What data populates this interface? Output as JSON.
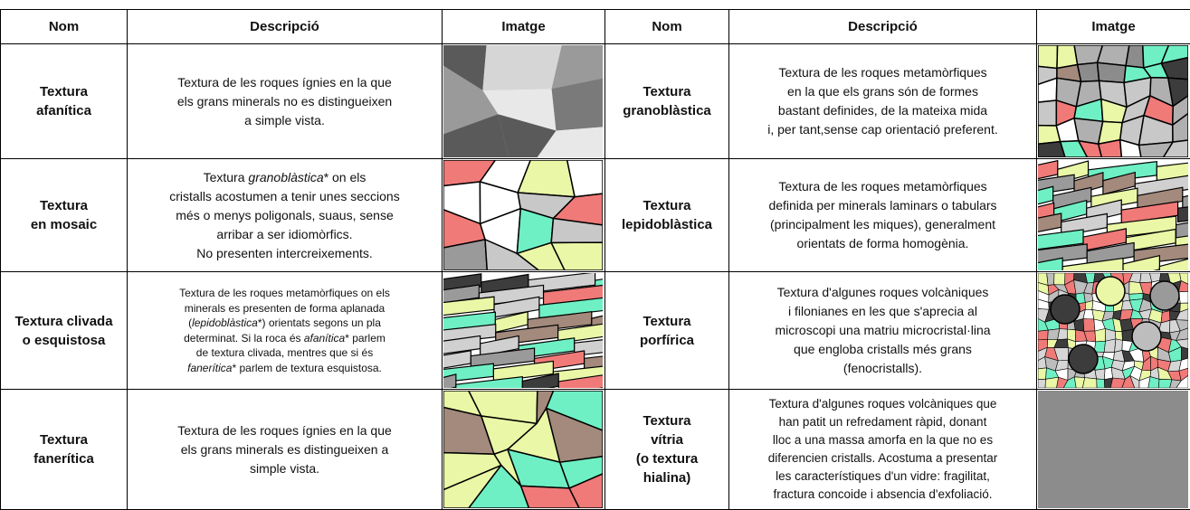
{
  "header": [
    "Nom",
    "Descripció",
    "Imatge",
    "Nom",
    "Descripció",
    "Imatge"
  ],
  "rows": [
    {
      "left": {
        "name": [
          "Textura",
          "afanítica"
        ],
        "description": [
          "Textura de les roques ígnies en la que",
          "els grans minerals no es distingueixen",
          "a simple vista."
        ]
      },
      "right": {
        "name": [
          "Textura",
          "granoblàstica"
        ],
        "description": [
          "Textura de les roques metamòrfiques",
          "en la que els grans són de formes",
          "bastant definides, de la mateixa mida",
          "i, per tant,sense cap orientació preferent."
        ]
      }
    },
    {
      "left": {
        "name": [
          "Textura",
          "en mosaic"
        ],
        "description": [
          [
            "Textura ",
            {
              "text": "granoblàstica",
              "italic": true
            },
            "* on els"
          ],
          "cristalls acostumen a tenir unes seccions",
          "més o menys poligonals, suaus, sense",
          "arribar a ser idiomòrfics.",
          "No presenten intercreixements."
        ]
      },
      "right": {
        "name": [
          "Textura",
          "lepidoblàstica"
        ],
        "description": [
          "Textura de les roques metamòrfiques",
          "definida per minerals laminars o tabulars",
          "(principalment les miques), generalment",
          "orientats de forma homogènia."
        ]
      }
    },
    {
      "left": {
        "name": [
          "Textura clivada",
          "o esquistosa"
        ],
        "description": [
          "Textura de les roques metamòrfiques  on els",
          "minerals es presenten de forma aplanada",
          [
            "(",
            {
              "text": "lepidoblàstica",
              "italic": true
            },
            "*) orientats segons un pla"
          ],
          [
            "determinat.  Si la roca és ",
            {
              "text": "afanítica",
              "italic": true
            },
            "* parlem"
          ],
          "de textura clivada, mentres que si és",
          [
            {
              "text": "fanerítica",
              "italic": true
            },
            "* parlem de textura esquistosa."
          ]
        ]
      },
      "right": {
        "name": [
          "Textura",
          "porfírica"
        ],
        "description": [
          "Textura d'algunes roques volcàniques",
          "i filonianes en les que s'aprecia al",
          "microscopi una matriu microcristal·lina",
          "que engloba cristalls més grans",
          "(fenocristalls)."
        ]
      }
    },
    {
      "left": {
        "name": [
          "Textura",
          "fanerítica"
        ],
        "description": [
          "Textura de les roques ígnies en la que",
          "els grans minerals es distingueixen a",
          "simple vista."
        ]
      },
      "right": {
        "name": [
          "Textura",
          "vítria",
          "(o textura",
          "hialina)"
        ],
        "description": [
          "Textura d'algunes roques volcàniques que",
          "han patit un refredament ràpid, donant",
          "lloc a una massa amorfa en la que no es",
          "diferencien cristalls. Acostuma a presentar",
          "les característiques d'un vidre: fragilitat,",
          "fractura concoide i absencia d'exfoliació."
        ]
      }
    }
  ]
}
